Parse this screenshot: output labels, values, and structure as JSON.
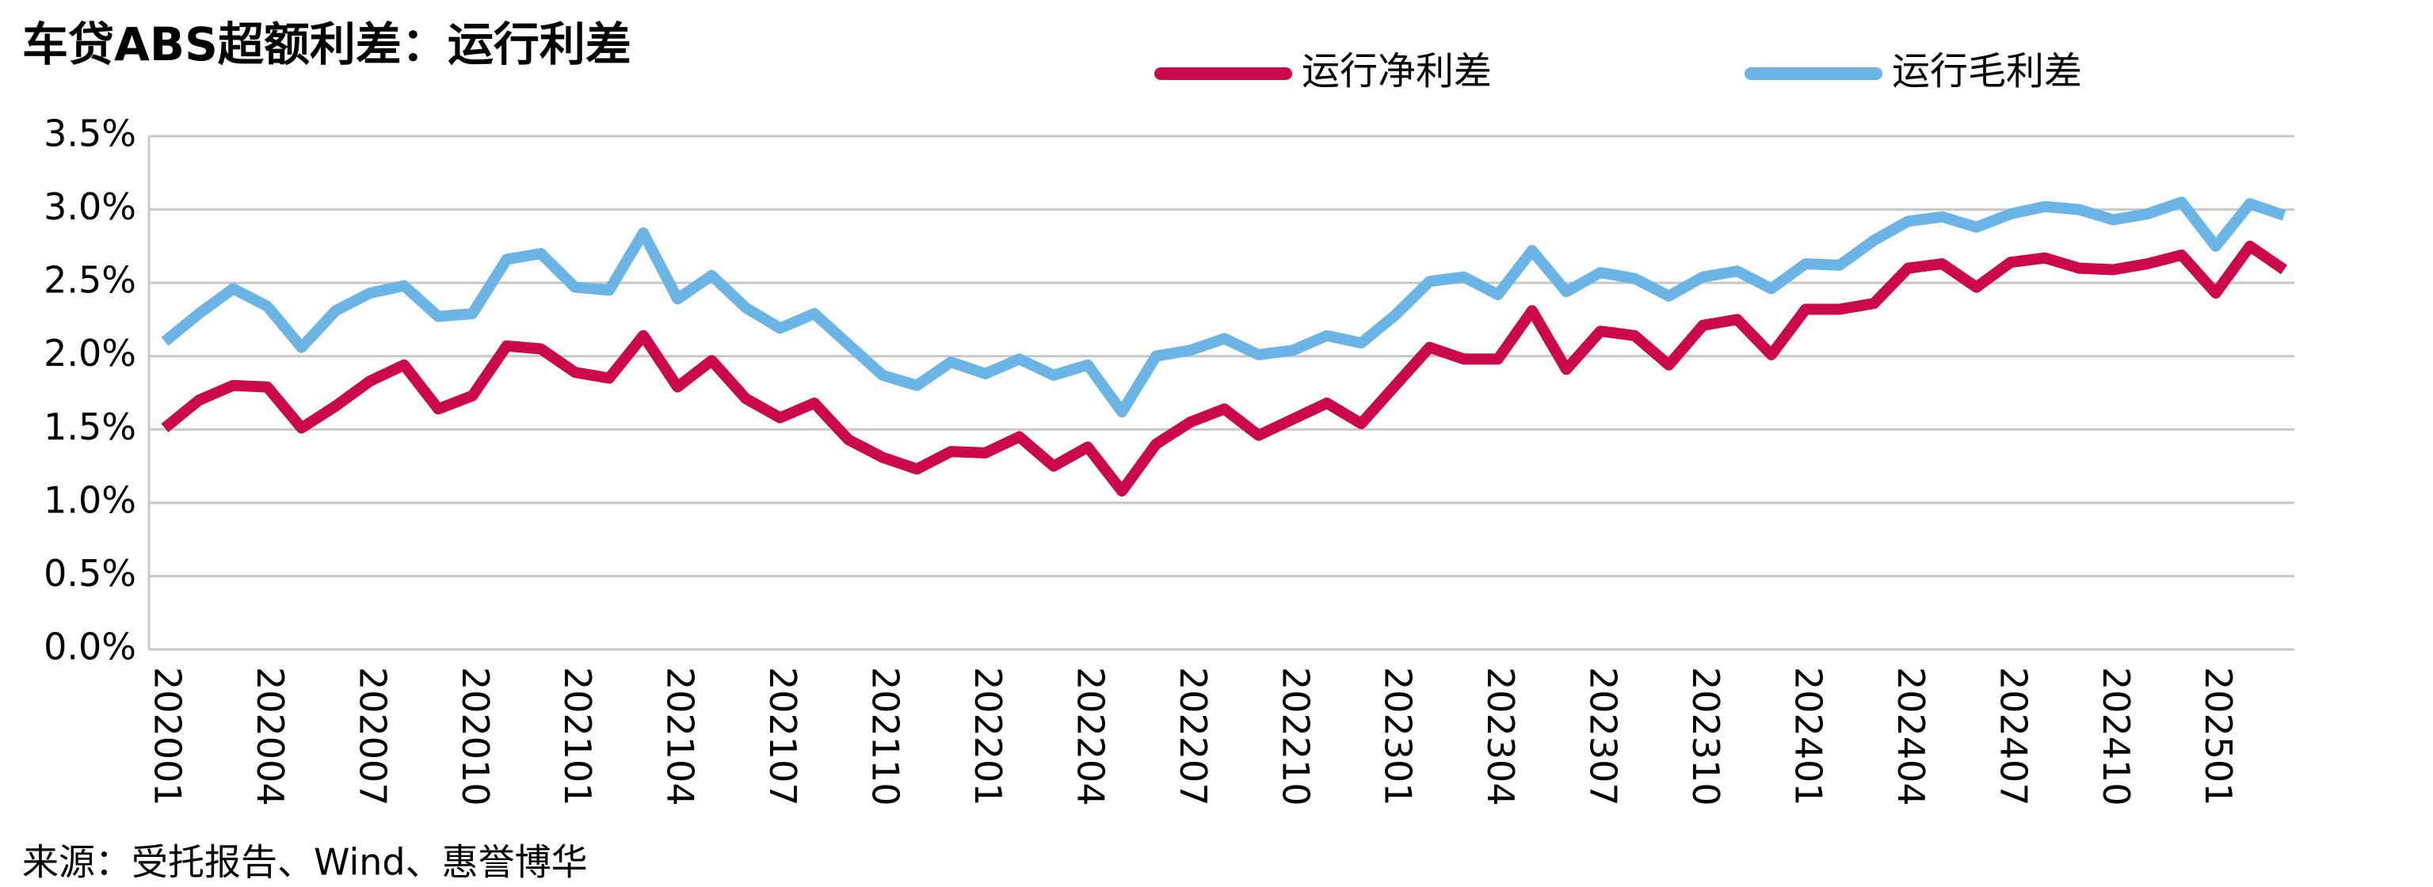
{
  "chart_data": {
    "type": "line",
    "title": "车贷ABS超额利差：运行利差",
    "source": "来源：受托报告、Wind、惠誉博华",
    "categories": [
      "202001",
      null,
      null,
      "202004",
      null,
      null,
      "202007",
      null,
      null,
      "202010",
      null,
      null,
      "202101",
      null,
      null,
      "202104",
      null,
      null,
      "202107",
      null,
      null,
      "202110",
      null,
      null,
      "202201",
      null,
      null,
      "202204",
      null,
      null,
      "202207",
      null,
      null,
      "202210",
      null,
      null,
      "202301",
      null,
      null,
      "202304",
      null,
      null,
      "202307",
      null,
      null,
      "202310",
      null,
      null,
      "202401",
      null,
      null,
      "202404",
      null,
      null,
      "202407",
      null,
      null,
      "202410",
      null,
      null,
      "202501",
      null,
      null
    ],
    "series": [
      {
        "name": "运行净利差",
        "color": "#cc0a4a",
        "values": [
          1.51,
          1.7,
          1.8,
          1.79,
          1.51,
          1.66,
          1.83,
          1.94,
          1.64,
          1.73,
          2.07,
          2.05,
          1.89,
          1.85,
          2.14,
          1.79,
          1.97,
          1.71,
          1.58,
          1.68,
          1.43,
          1.31,
          1.23,
          1.35,
          1.34,
          1.45,
          1.25,
          1.38,
          1.08,
          1.4,
          1.55,
          1.64,
          1.46,
          1.57,
          1.68,
          1.54,
          1.8,
          2.06,
          1.98,
          1.98,
          2.31,
          1.91,
          2.17,
          2.14,
          1.94,
          2.21,
          2.25,
          2.01,
          2.32,
          2.32,
          2.36,
          2.6,
          2.63,
          2.47,
          2.64,
          2.67,
          2.6,
          2.59,
          2.63,
          2.69,
          2.43,
          2.75,
          2.59
        ]
      },
      {
        "name": "运行毛利差",
        "color": "#6bb5e6",
        "values": [
          2.1,
          2.29,
          2.46,
          2.34,
          2.06,
          2.31,
          2.43,
          2.48,
          2.27,
          2.29,
          2.66,
          2.7,
          2.47,
          2.45,
          2.84,
          2.39,
          2.55,
          2.33,
          2.19,
          2.29,
          2.08,
          1.87,
          1.8,
          1.96,
          1.88,
          1.98,
          1.87,
          1.94,
          1.62,
          2.0,
          2.04,
          2.12,
          2.01,
          2.04,
          2.14,
          2.09,
          2.28,
          2.51,
          2.54,
          2.42,
          2.72,
          2.44,
          2.57,
          2.53,
          2.41,
          2.54,
          2.58,
          2.46,
          2.63,
          2.62,
          2.79,
          2.92,
          2.95,
          2.88,
          2.97,
          3.02,
          3.0,
          2.93,
          2.97,
          3.05,
          2.75,
          3.04,
          2.96
        ]
      }
    ],
    "ylim": [
      0,
      3.5
    ],
    "yticks": [
      {
        "value": 0,
        "label": "0.0%"
      },
      {
        "value": 0.5,
        "label": "0.5%"
      },
      {
        "value": 1,
        "label": "1.0%"
      },
      {
        "value": 1.5,
        "label": "1.5%"
      },
      {
        "value": 2,
        "label": "2.0%"
      },
      {
        "value": 2.5,
        "label": "2.5%"
      },
      {
        "value": 3,
        "label": "3.0%"
      },
      {
        "value": 3.5,
        "label": "3.5%"
      }
    ],
    "grid": true
  }
}
